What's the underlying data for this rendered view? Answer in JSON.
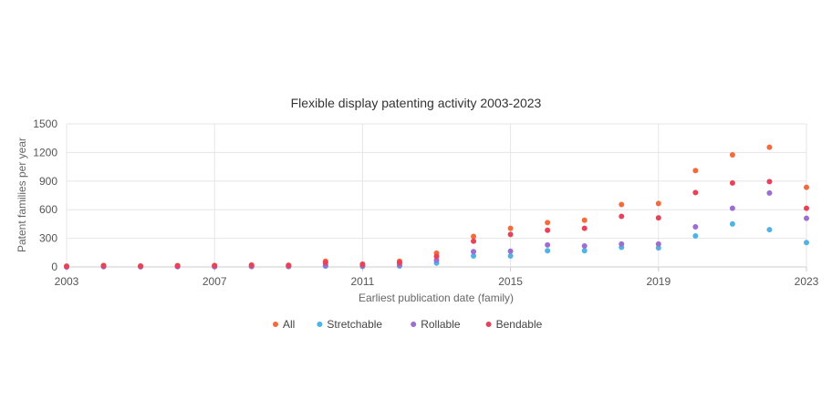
{
  "chart_data": {
    "type": "scatter",
    "title": "Flexible display patenting activity 2003-2023",
    "xlabel": "Earliest publication date (family)",
    "ylabel": "Patent families per year",
    "xlim": [
      2003,
      2023
    ],
    "ylim": [
      0,
      1500
    ],
    "x_ticks": [
      "2003",
      "2007",
      "2011",
      "2015",
      "2019",
      "2023"
    ],
    "y_ticks": [
      "0",
      "300",
      "600",
      "900",
      "1200",
      "1500"
    ],
    "x_tick_values": [
      2003,
      2007,
      2011,
      2015,
      2019,
      2023
    ],
    "y_tick_values": [
      0,
      300,
      600,
      900,
      1200,
      1500
    ],
    "grid": true,
    "legend_position": "bottom-center",
    "x": [
      2003,
      2004,
      2005,
      2006,
      2007,
      2008,
      2009,
      2010,
      2011,
      2012,
      2013,
      2014,
      2015,
      2016,
      2017,
      2018,
      2019,
      2020,
      2021,
      2022,
      2023
    ],
    "series": [
      {
        "name": "All",
        "color": "#f46b3b",
        "values": [
          8,
          15,
          10,
          14,
          15,
          20,
          18,
          60,
          30,
          60,
          145,
          320,
          405,
          465,
          490,
          655,
          665,
          1010,
          1175,
          1255,
          835
        ]
      },
      {
        "name": "Stretchable",
        "color": "#4fb3e3",
        "values": [
          0,
          2,
          1,
          2,
          2,
          3,
          3,
          8,
          5,
          10,
          40,
          115,
          115,
          170,
          170,
          205,
          200,
          325,
          450,
          390,
          255
        ]
      },
      {
        "name": "Rollable",
        "color": "#9b6fd0",
        "values": [
          0,
          3,
          2,
          3,
          3,
          5,
          5,
          15,
          10,
          20,
          70,
          160,
          165,
          230,
          220,
          240,
          240,
          420,
          615,
          775,
          510
        ]
      },
      {
        "name": "Bendable",
        "color": "#e8425a",
        "values": [
          6,
          12,
          8,
          11,
          12,
          17,
          15,
          45,
          25,
          45,
          110,
          270,
          340,
          385,
          405,
          530,
          515,
          780,
          880,
          895,
          615
        ]
      }
    ]
  }
}
